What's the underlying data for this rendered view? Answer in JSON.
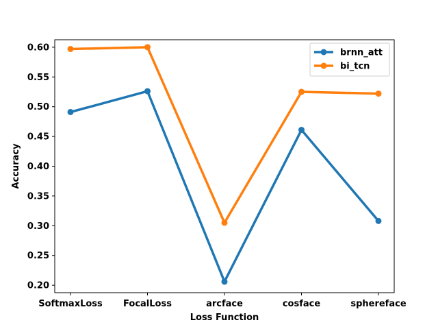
{
  "chart_data": {
    "type": "line",
    "categories": [
      "SoftmaxLoss",
      "FocalLoss",
      "arcface",
      "cosface",
      "sphereface"
    ],
    "series": [
      {
        "name": "brnn_att",
        "values": [
          0.491,
          0.526,
          0.206,
          0.461,
          0.308
        ],
        "color": "#1f77b4"
      },
      {
        "name": "bi_tcn",
        "values": [
          0.597,
          0.6,
          0.305,
          0.525,
          0.522
        ],
        "color": "#ff7f0e"
      }
    ],
    "xlabel": "Loss Function",
    "ylabel": "Accuracy",
    "ylim": [
      0.1875,
      0.6125
    ],
    "yticks": [
      "0.20",
      "0.25",
      "0.30",
      "0.35",
      "0.40",
      "0.45",
      "0.50",
      "0.55",
      "0.60"
    ],
    "grid": false,
    "legend_position": "upper right"
  }
}
